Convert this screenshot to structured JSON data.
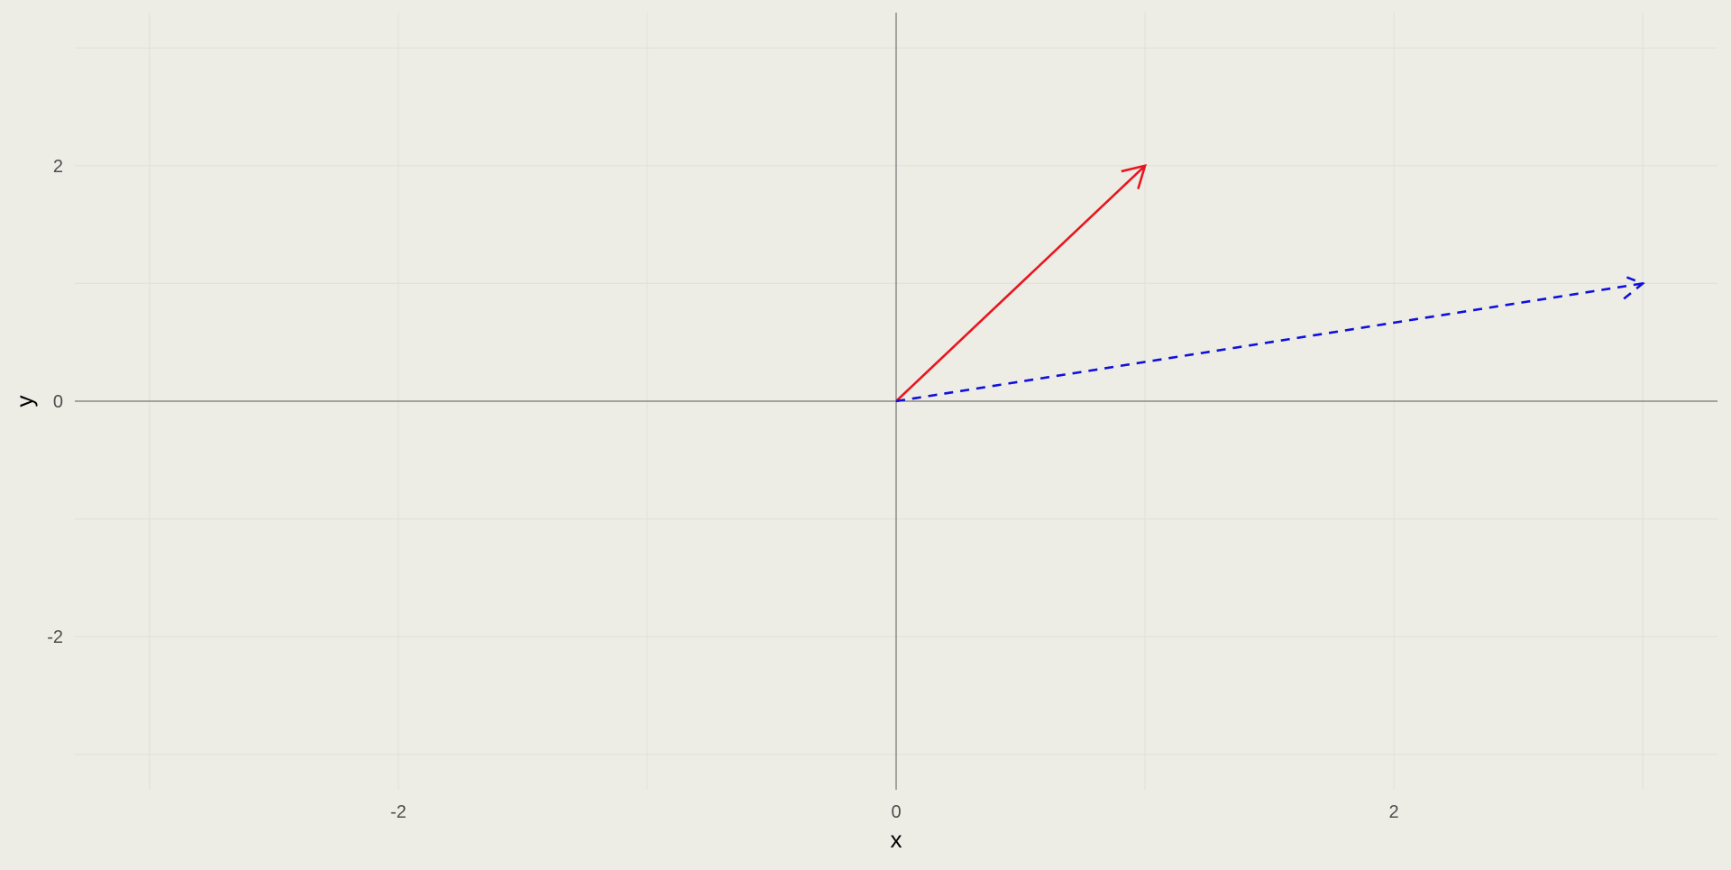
{
  "chart_data": {
    "type": "line",
    "title": "",
    "xlabel": "x",
    "ylabel": "y",
    "xlim": [
      -3.3,
      3.3
    ],
    "ylim": [
      -3.3,
      3.3
    ],
    "x_ticks": [
      -2,
      0,
      2
    ],
    "x_tick_labels": [
      "-2",
      "0",
      "2"
    ],
    "y_ticks": [
      -2,
      0,
      2
    ],
    "y_tick_labels": [
      "-2",
      "0",
      "2"
    ],
    "minor_grid": [
      -3,
      -1,
      1,
      3
    ],
    "grid": true,
    "legend": "none",
    "background_color": "#edede6",
    "grid_color": "#e2e2dc",
    "reference_lines": [
      {
        "axis": "x",
        "value": 0,
        "color": "#5a5a5a"
      },
      {
        "axis": "y",
        "value": 0,
        "color": "#5a5a5a"
      }
    ],
    "series": [
      {
        "type": "arrow",
        "x": [
          0,
          1
        ],
        "y": [
          0,
          2
        ],
        "color": "#e8161e",
        "linestyle": "solid"
      },
      {
        "type": "arrow",
        "x": [
          0,
          3
        ],
        "y": [
          0,
          1
        ],
        "color": "#1010dd",
        "linestyle": "dashed"
      }
    ]
  }
}
